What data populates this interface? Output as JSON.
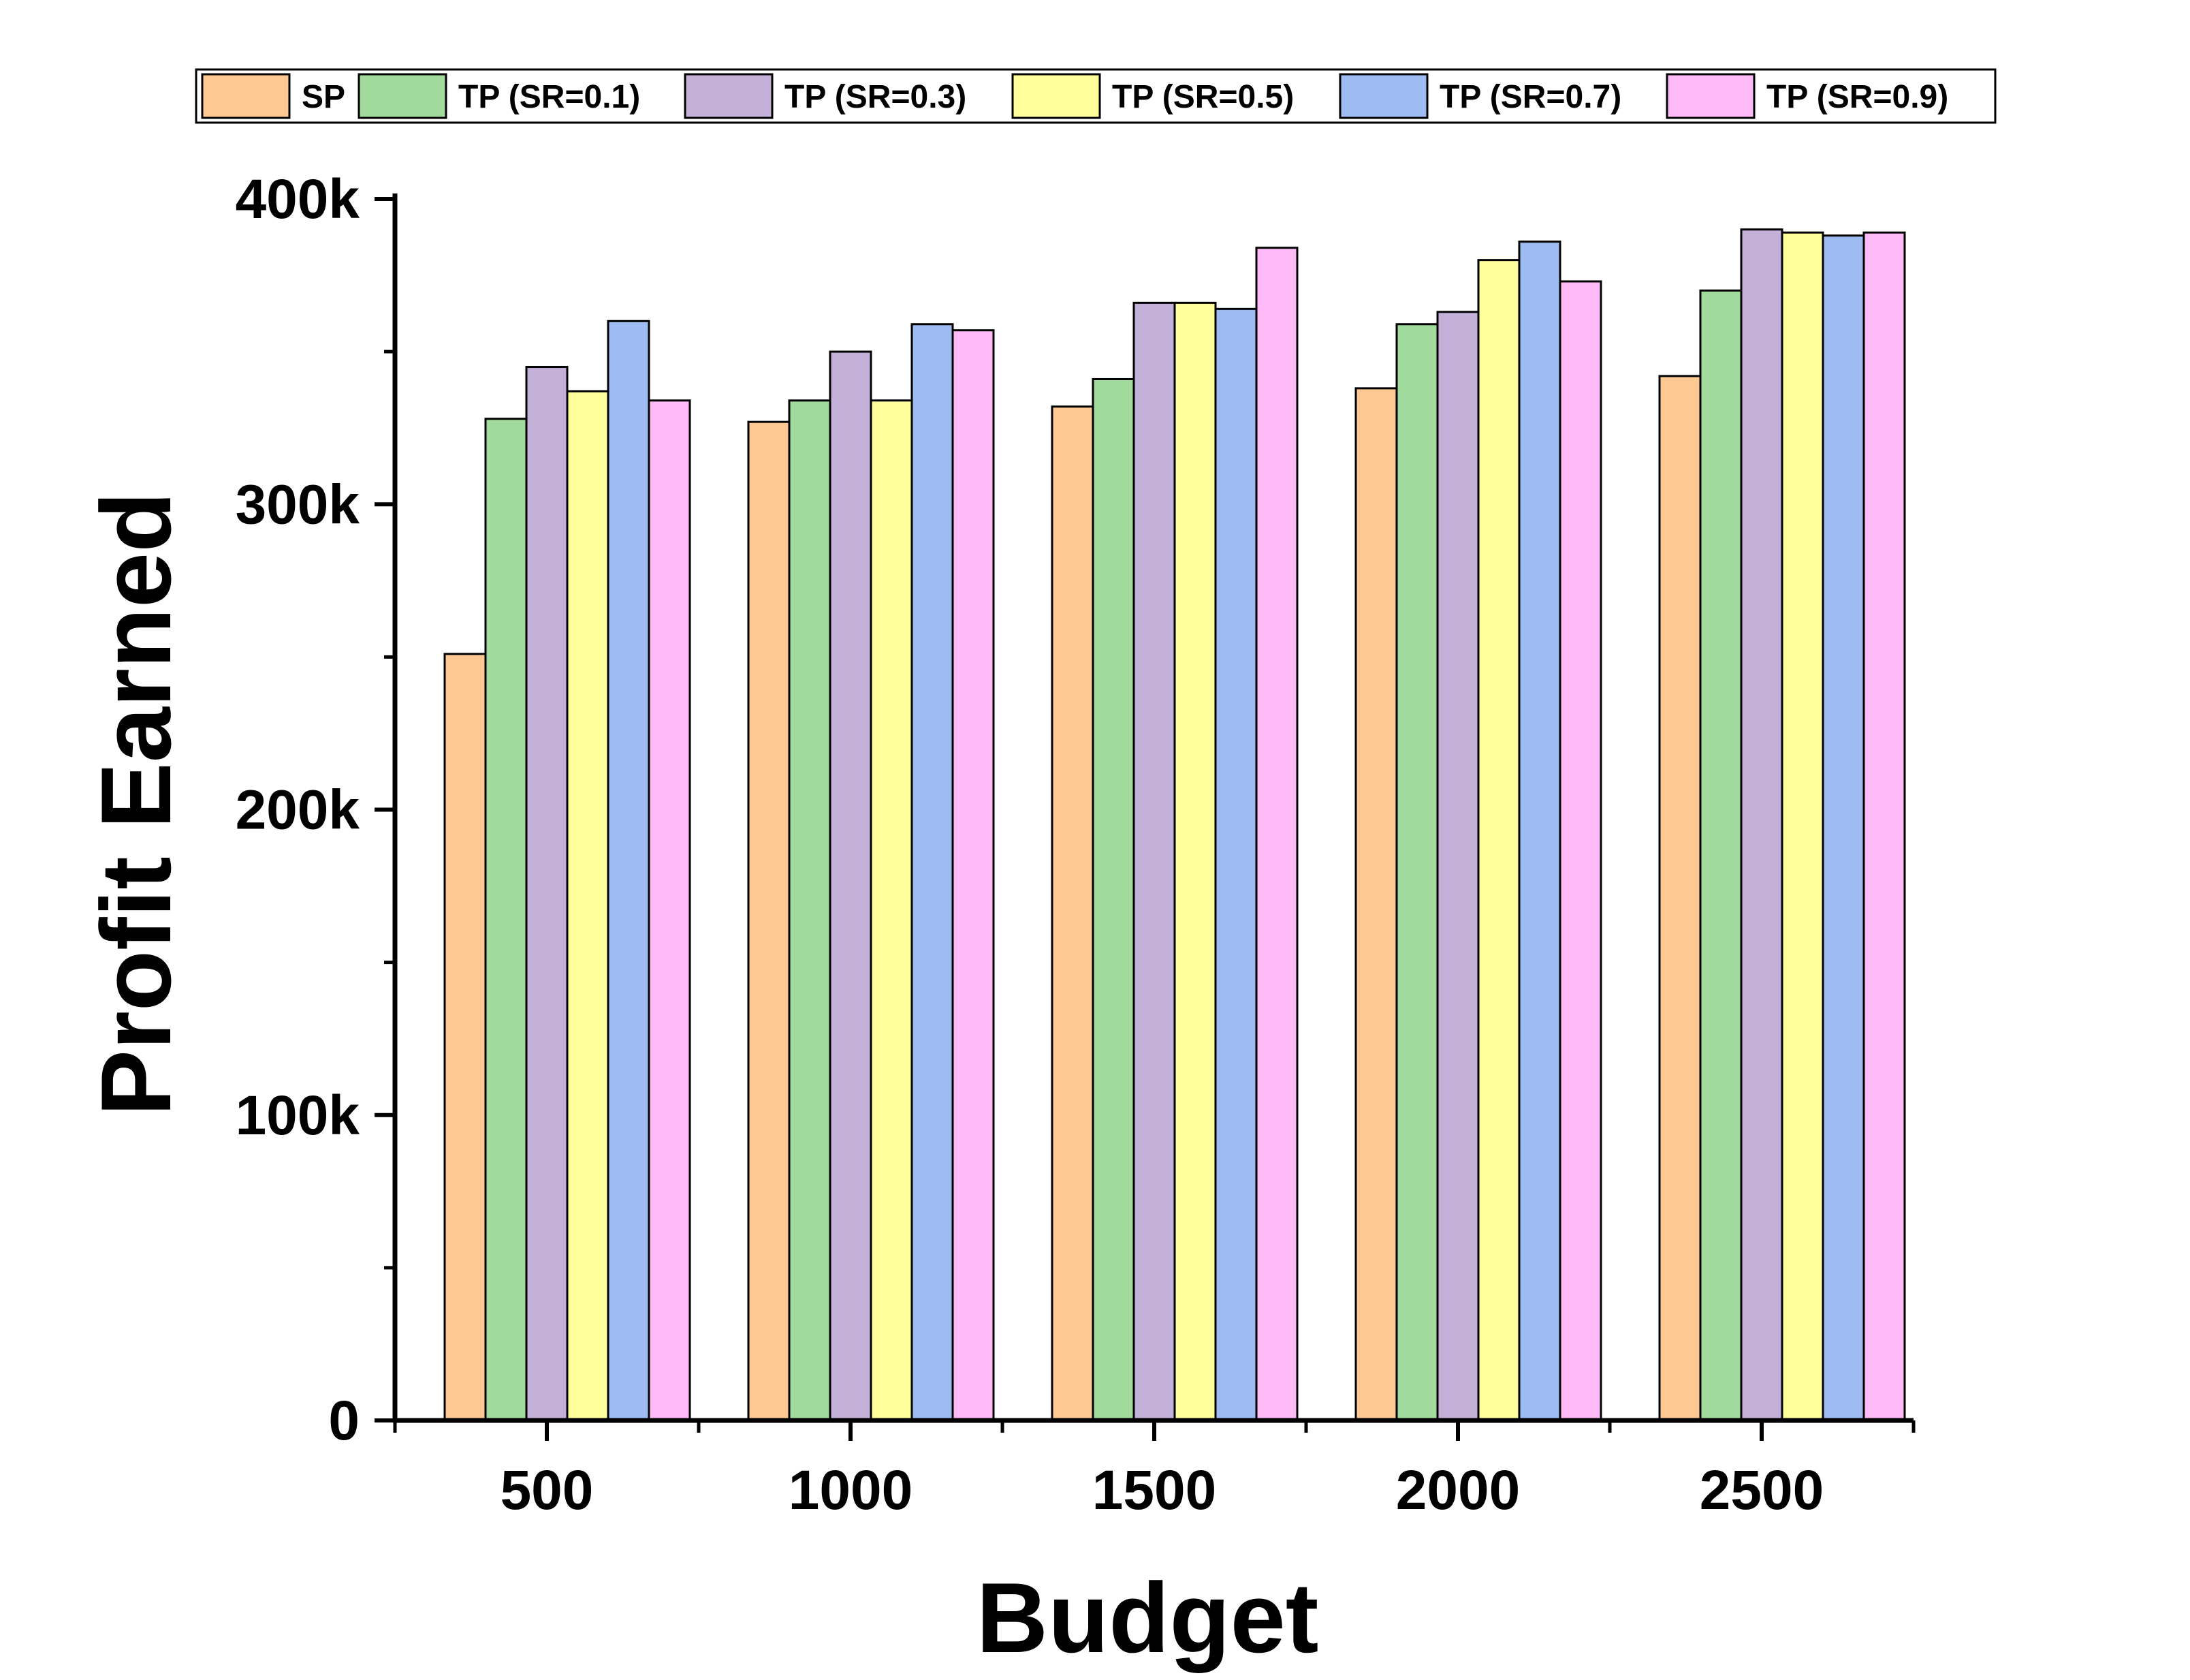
{
  "chart_data": {
    "type": "bar",
    "title": "",
    "xlabel": "Budget",
    "ylabel": "Profit Earned",
    "categories": [
      "500",
      "1000",
      "1500",
      "2000",
      "2500"
    ],
    "ylim": [
      0,
      400000
    ],
    "y_ticks": [
      {
        "value": 0,
        "label": "0"
      },
      {
        "value": 100000,
        "label": "100k"
      },
      {
        "value": 200000,
        "label": "200k"
      },
      {
        "value": 300000,
        "label": "300k"
      },
      {
        "value": 400000,
        "label": "400k"
      }
    ],
    "legend_position": "top",
    "grid": false,
    "series": [
      {
        "name": "SP",
        "color": "#FDC891",
        "values": [
          251000,
          327000,
          332000,
          338000,
          342000
        ]
      },
      {
        "name": "TP (SR=0.1)",
        "color": "#A0DA9C",
        "values": [
          328000,
          334000,
          341000,
          359000,
          370000
        ]
      },
      {
        "name": "TP (SR=0.3)",
        "color": "#C4B1D9",
        "values": [
          345000,
          350000,
          366000,
          363000,
          390000
        ]
      },
      {
        "name": "TP (SR=0.5)",
        "color": "#FFFF9C",
        "values": [
          337000,
          334000,
          366000,
          380000,
          389000
        ]
      },
      {
        "name": "TP (SR=0.7)",
        "color": "#9EBBF2",
        "values": [
          360000,
          359000,
          364000,
          386000,
          388000
        ]
      },
      {
        "name": "TP (SR=0.9)",
        "color": "#FDBAF6",
        "values": [
          334000,
          357000,
          384000,
          373000,
          389000
        ]
      }
    ]
  }
}
